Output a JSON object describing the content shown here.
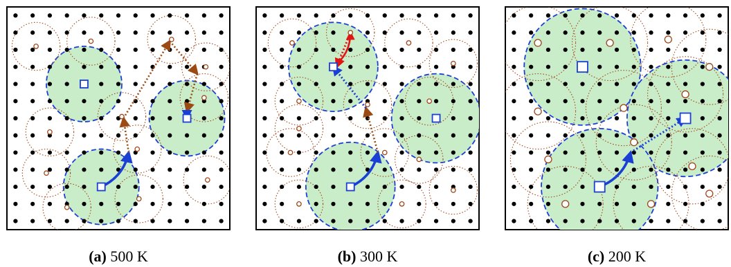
{
  "panels": [
    {
      "id": "a",
      "letter": "(a)",
      "label": "500 K",
      "basins": [
        {
          "site": [
            4,
            4
          ],
          "radius_sites": 2.2
        },
        {
          "site": [
            10,
            6
          ],
          "radius_sites": 2.2
        },
        {
          "site": [
            5,
            10
          ],
          "radius_sites": 2.2
        }
      ],
      "local_minima": [
        {
          "site": [
            1.2,
            1.8
          ],
          "radius_sites": 1.4
        },
        {
          "site": [
            4.4,
            1.5
          ],
          "radius_sites": 1.4
        },
        {
          "site": [
            9.1,
            1.4
          ],
          "radius_sites": 1.4
        },
        {
          "site": [
            11.1,
            3.0
          ],
          "radius_sites": 1.4
        },
        {
          "site": [
            6.2,
            5.9
          ],
          "radius_sites": 1.4
        },
        {
          "site": [
            7.1,
            7.8
          ],
          "radius_sites": 1.4
        },
        {
          "site": [
            2.0,
            6.8
          ],
          "radius_sites": 1.4
        },
        {
          "site": [
            1.8,
            9.2
          ],
          "radius_sites": 1.4
        },
        {
          "site": [
            3.0,
            11.2
          ],
          "radius_sites": 1.4
        },
        {
          "site": [
            7.2,
            10.7
          ],
          "radius_sites": 1.4
        },
        {
          "site": [
            11.2,
            9.6
          ],
          "radius_sites": 1.4
        },
        {
          "site": [
            11.0,
            4.8
          ],
          "radius_sites": 1.4
        }
      ],
      "paths": [
        {
          "from": [
            5.0,
            10.0
          ],
          "to": [
            6.6,
            8.0
          ],
          "style": "solid-blue"
        },
        {
          "from": [
            6.6,
            8.0
          ],
          "to": [
            6.3,
            6.0
          ],
          "style": "dotted-brown"
        },
        {
          "from": [
            6.3,
            6.0
          ],
          "to": [
            9.0,
            1.5
          ],
          "style": "dotted-brown"
        },
        {
          "from": [
            9.0,
            1.5
          ],
          "to": [
            10.6,
            3.4
          ],
          "style": "dotted-brown"
        },
        {
          "from": [
            10.6,
            3.4
          ],
          "to": [
            10.0,
            5.6
          ],
          "style": "dotted-brown"
        },
        {
          "from": [
            10.0,
            5.6
          ],
          "to": [
            10.0,
            6.0
          ],
          "style": "dotted-blue"
        }
      ]
    },
    {
      "id": "b",
      "letter": "(b)",
      "label": "300 K",
      "basins": [
        {
          "site": [
            4,
            3
          ],
          "radius_sites": 2.6
        },
        {
          "site": [
            10,
            6
          ],
          "radius_sites": 2.6
        },
        {
          "site": [
            5,
            10
          ],
          "radius_sites": 2.6
        }
      ],
      "local_minima": [
        {
          "site": [
            1.6,
            1.6
          ],
          "radius_sites": 1.4
        },
        {
          "site": [
            5.0,
            1.0
          ],
          "radius_sites": 1.4
        },
        {
          "site": [
            8.4,
            1.6
          ],
          "radius_sites": 1.4
        },
        {
          "site": [
            11.0,
            2.8
          ],
          "radius_sites": 1.4
        },
        {
          "site": [
            2.0,
            5.0
          ],
          "radius_sites": 1.4
        },
        {
          "site": [
            6.0,
            5.2
          ],
          "radius_sites": 1.4
        },
        {
          "site": [
            9.6,
            5.0
          ],
          "radius_sites": 1.4
        },
        {
          "site": [
            2.0,
            6.6
          ],
          "radius_sites": 1.4
        },
        {
          "site": [
            1.5,
            8.0
          ],
          "radius_sites": 1.4
        },
        {
          "site": [
            7.0,
            8.0
          ],
          "radius_sites": 1.4
        },
        {
          "site": [
            9.0,
            8.4
          ],
          "radius_sites": 1.4
        },
        {
          "site": [
            2.0,
            11.0
          ],
          "radius_sites": 1.4
        },
        {
          "site": [
            8.0,
            11.0
          ],
          "radius_sites": 1.4
        },
        {
          "site": [
            11.0,
            10.2
          ],
          "radius_sites": 1.4
        }
      ],
      "paths": [
        {
          "from": [
            5.0,
            10.0
          ],
          "to": [
            6.6,
            8.0
          ],
          "style": "solid-blue"
        },
        {
          "from": [
            6.6,
            8.0
          ],
          "to": [
            5.9,
            5.4
          ],
          "style": "dotted-brown"
        },
        {
          "from": [
            5.9,
            5.4
          ],
          "to": [
            4.0,
            3.0
          ],
          "style": "dotted-blue"
        },
        {
          "from": [
            4.0,
            3.0
          ],
          "to": [
            5.0,
            1.0
          ],
          "style": "solid-red"
        },
        {
          "from": [
            5.0,
            1.0
          ],
          "to": [
            4.2,
            3.0
          ],
          "style": "dotted-red"
        }
      ]
    },
    {
      "id": "c",
      "letter": "(c)",
      "label": "200 K",
      "basins": [
        {
          "site": [
            4,
            3
          ],
          "radius_sites": 3.4
        },
        {
          "site": [
            10,
            6
          ],
          "radius_sites": 3.4
        },
        {
          "site": [
            5,
            10
          ],
          "radius_sites": 3.4
        }
      ],
      "local_minima": [
        {
          "site": [
            1.4,
            1.6
          ],
          "radius_sites": 2.2
        },
        {
          "site": [
            5.6,
            1.6
          ],
          "radius_sites": 2.2
        },
        {
          "site": [
            9.0,
            1.4
          ],
          "radius_sites": 2.2
        },
        {
          "site": [
            11.4,
            3.0
          ],
          "radius_sites": 2.2
        },
        {
          "site": [
            1.4,
            5.6
          ],
          "radius_sites": 2.2
        },
        {
          "site": [
            6.4,
            5.4
          ],
          "radius_sites": 2.2
        },
        {
          "site": [
            10.0,
            4.6
          ],
          "radius_sites": 2.2
        },
        {
          "site": [
            2.0,
            8.4
          ],
          "radius_sites": 2.2
        },
        {
          "site": [
            7.0,
            7.4
          ],
          "radius_sites": 2.2
        },
        {
          "site": [
            10.4,
            8.8
          ],
          "radius_sites": 2.2
        },
        {
          "site": [
            3.0,
            11.0
          ],
          "radius_sites": 2.2
        },
        {
          "site": [
            8.0,
            11.0
          ],
          "radius_sites": 2.2
        },
        {
          "site": [
            11.4,
            10.4
          ],
          "radius_sites": 2.2
        }
      ],
      "paths": [
        {
          "from": [
            5.0,
            10.0
          ],
          "to": [
            6.8,
            8.0
          ],
          "style": "solid-blue"
        },
        {
          "from": [
            6.8,
            8.0
          ],
          "to": [
            10.0,
            6.0
          ],
          "style": "dotted-blue"
        }
      ]
    }
  ],
  "colors": {
    "basin_fill": "#c9ecc9",
    "basin_stroke": "#1a3fd4",
    "minimum_stroke": "#a0461a",
    "path_blue": "#1a3fd4",
    "path_brown": "#9a4a12",
    "path_red": "#e01515",
    "dot": "#000000",
    "frame": "#000000"
  }
}
